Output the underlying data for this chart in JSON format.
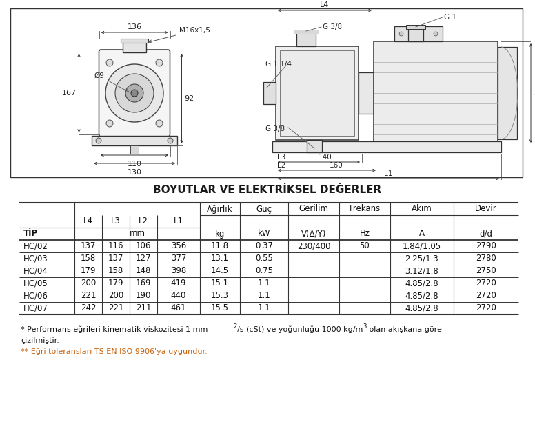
{
  "title": "BOYUTLAR VE ELEKTRİKSEL DEĞERLER",
  "table_data": [
    [
      "HC/02",
      "137",
      "116",
      "106",
      "356",
      "11.8",
      "0.37",
      "230/400",
      "50",
      "1.84/1.05",
      "2790"
    ],
    [
      "HC/03",
      "158",
      "137",
      "127",
      "377",
      "13.1",
      "0.55",
      "",
      "",
      "2.25/1.3",
      "2780"
    ],
    [
      "HC/04",
      "179",
      "158",
      "148",
      "398",
      "14.5",
      "0.75",
      "",
      "",
      "3.12/1.8",
      "2750"
    ],
    [
      "HC/05",
      "200",
      "179",
      "169",
      "419",
      "15.1",
      "1.1",
      "",
      "",
      "4.85/2.8",
      "2720"
    ],
    [
      "HC/06",
      "221",
      "200",
      "190",
      "440",
      "15.3",
      "1.1",
      "",
      "",
      "4.85/2.8",
      "2720"
    ],
    [
      "HC/07",
      "242",
      "221",
      "211",
      "461",
      "15.5",
      "1.1",
      "",
      "",
      "4.85/2.8",
      "2720"
    ]
  ],
  "footnote2_color": "#c8600a",
  "bg_color": "#ffffff"
}
